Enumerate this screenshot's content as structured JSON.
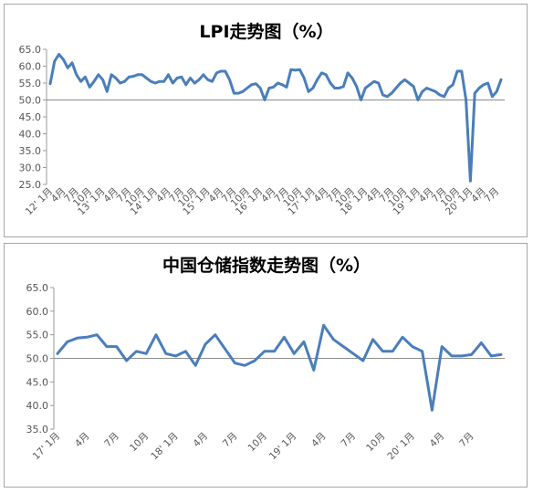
{
  "chart_data": [
    {
      "type": "line",
      "title": "LPI走势图（%）",
      "ylim": [
        25,
        65
      ],
      "yticks": [
        "25.0",
        "30.0",
        "35.0",
        "40.0",
        "45.0",
        "50.0",
        "55.0",
        "60.0",
        "65.0"
      ],
      "baseline": 50,
      "grid": false,
      "xticks": [
        {
          "i": 0,
          "label": "12' 1月"
        },
        {
          "i": 3,
          "label": "4月"
        },
        {
          "i": 6,
          "label": "7月"
        },
        {
          "i": 9,
          "label": "10月"
        },
        {
          "i": 12,
          "label": "13' 1月"
        },
        {
          "i": 15,
          "label": "4月"
        },
        {
          "i": 18,
          "label": "7月"
        },
        {
          "i": 21,
          "label": "10月"
        },
        {
          "i": 24,
          "label": "14' 1月"
        },
        {
          "i": 27,
          "label": "4月"
        },
        {
          "i": 30,
          "label": "7月"
        },
        {
          "i": 33,
          "label": "10月"
        },
        {
          "i": 36,
          "label": "15' 1月"
        },
        {
          "i": 39,
          "label": "4月"
        },
        {
          "i": 42,
          "label": "7月"
        },
        {
          "i": 45,
          "label": "10月"
        },
        {
          "i": 48,
          "label": "16' 1月"
        },
        {
          "i": 51,
          "label": "4月"
        },
        {
          "i": 54,
          "label": "7月"
        },
        {
          "i": 57,
          "label": "10月"
        },
        {
          "i": 60,
          "label": "17' 1月"
        },
        {
          "i": 63,
          "label": "4月"
        },
        {
          "i": 66,
          "label": "7月"
        },
        {
          "i": 69,
          "label": "10月"
        },
        {
          "i": 72,
          "label": "18' 1月"
        },
        {
          "i": 75,
          "label": "4月"
        },
        {
          "i": 78,
          "label": "7月"
        },
        {
          "i": 81,
          "label": "10月"
        },
        {
          "i": 84,
          "label": "19' 1月"
        },
        {
          "i": 87,
          "label": "4月"
        },
        {
          "i": 90,
          "label": "7月"
        },
        {
          "i": 93,
          "label": "10月"
        },
        {
          "i": 96,
          "label": "20' 1月"
        },
        {
          "i": 99,
          "label": "4月"
        },
        {
          "i": 102,
          "label": "7月"
        }
      ],
      "values": [
        54.8,
        61.5,
        63.5,
        62.0,
        59.5,
        61.0,
        57.5,
        55.5,
        56.8,
        53.8,
        55.5,
        57.5,
        56.0,
        52.5,
        57.5,
        56.5,
        55.0,
        55.5,
        56.8,
        57.0,
        57.5,
        57.5,
        56.5,
        55.5,
        55.0,
        55.5,
        55.5,
        57.5,
        55.0,
        56.5,
        56.8,
        54.5,
        56.5,
        55.0,
        56.0,
        57.5,
        56.0,
        55.5,
        58.0,
        58.5,
        58.5,
        56.0,
        52.0,
        52.0,
        52.5,
        53.5,
        54.5,
        54.8,
        53.5,
        50.0,
        53.5,
        53.8,
        55.0,
        54.5,
        53.8,
        59.0,
        58.8,
        59.0,
        56.5,
        52.5,
        53.5,
        56.0,
        58.0,
        57.5,
        55.0,
        53.5,
        53.5,
        54.0,
        58.0,
        56.5,
        54.0,
        50.0,
        53.5,
        54.5,
        55.5,
        55.0,
        51.5,
        51.0,
        52.0,
        53.5,
        55.0,
        56.0,
        55.0,
        54.0,
        50.0,
        52.5,
        53.5,
        53.0,
        52.5,
        51.5,
        51.0,
        53.5,
        54.5,
        58.5,
        58.5,
        50.0,
        26.0,
        52.0,
        53.5,
        54.5,
        55.0,
        51.0,
        52.5,
        56.0
      ],
      "color": "#4a7ebb"
    },
    {
      "type": "line",
      "title": "中国仓储指数走势图（%）",
      "ylim": [
        35,
        65
      ],
      "yticks": [
        "35.0",
        "40.0",
        "45.0",
        "50.0",
        "55.0",
        "60.0",
        "65.0"
      ],
      "baseline": 50,
      "grid": false,
      "xticks": [
        {
          "i": 0,
          "label": "17' 1月"
        },
        {
          "i": 3,
          "label": "4月"
        },
        {
          "i": 6,
          "label": "7月"
        },
        {
          "i": 9,
          "label": "10月"
        },
        {
          "i": 12,
          "label": "18' 1月"
        },
        {
          "i": 15,
          "label": "4月"
        },
        {
          "i": 18,
          "label": "7月"
        },
        {
          "i": 21,
          "label": "10月"
        },
        {
          "i": 24,
          "label": "19' 1月"
        },
        {
          "i": 27,
          "label": "4月"
        },
        {
          "i": 30,
          "label": "7月"
        },
        {
          "i": 33,
          "label": "10月"
        },
        {
          "i": 36,
          "label": "20' 1月"
        },
        {
          "i": 39,
          "label": "4月"
        },
        {
          "i": 42,
          "label": "7月"
        }
      ],
      "values": [
        51.0,
        53.5,
        54.3,
        54.5,
        55.0,
        52.5,
        52.5,
        49.5,
        51.5,
        51.0,
        55.0,
        51.0,
        50.5,
        51.5,
        48.5,
        53.0,
        55.0,
        52.0,
        49.0,
        48.5,
        49.5,
        51.5,
        51.5,
        54.5,
        51.0,
        53.5,
        47.5,
        57.0,
        54.0,
        52.5,
        51.0,
        49.5,
        54.0,
        51.5,
        51.5,
        54.5,
        52.5,
        51.5,
        39.0,
        52.5,
        50.5,
        50.5,
        50.8,
        53.3,
        50.5,
        50.8
      ],
      "color": "#4a7ebb"
    }
  ]
}
